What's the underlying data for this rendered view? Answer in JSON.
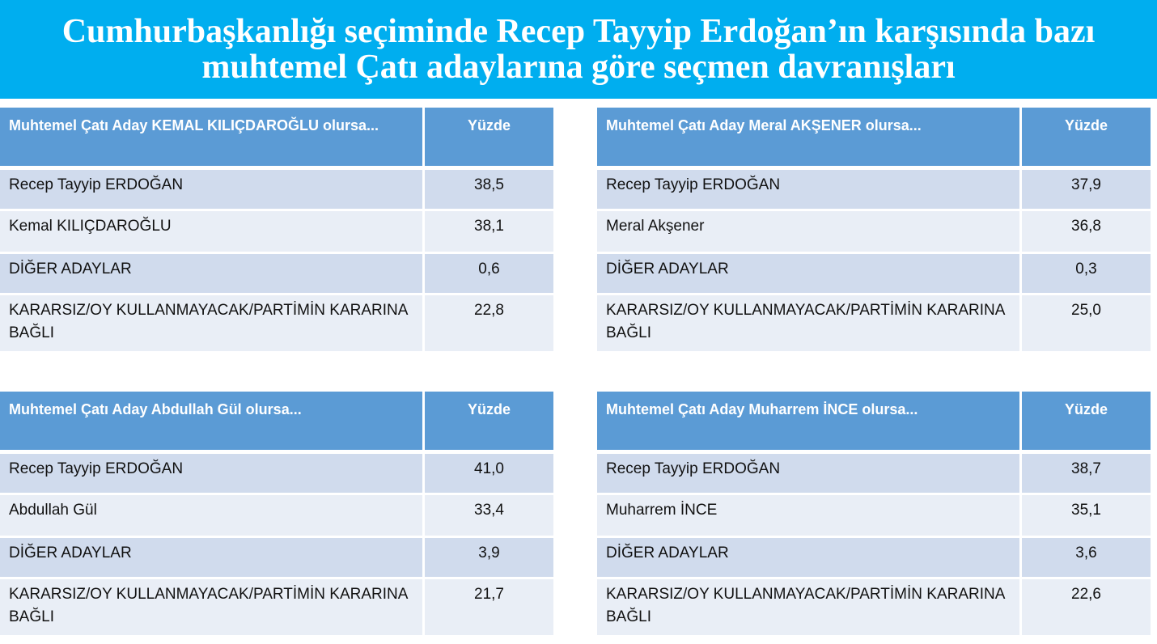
{
  "title": {
    "line1": "Cumhurbaşkanlığı  seçiminde Recep Tayyip Erdoğan’ın karşısında bazı",
    "line2": "muhtemel Çatı adaylarına göre seçmen davranışları"
  },
  "colors": {
    "title_bg": "#00aeef",
    "header_bg": "#5b9bd5",
    "row_odd": "#d0dbed",
    "row_even": "#e9eef6"
  },
  "tables": [
    {
      "header": "Muhtemel Çatı Aday KEMAL KILIÇDAROĞLU olursa...",
      "col": "Yüzde",
      "rows": [
        {
          "label": "Recep Tayyip ERDOĞAN",
          "value": "38,5"
        },
        {
          "label": "Kemal KILIÇDAROĞLU",
          "value": "38,1"
        },
        {
          "label": "DİĞER ADAYLAR",
          "value": "0,6"
        },
        {
          "label": "KARARSIZ/OY KULLANMAYACAK/PARTİMİN KARARINA BAĞLI",
          "value": "22,8"
        }
      ]
    },
    {
      "header": "Muhtemel Çatı Aday Meral AKŞENER olursa...",
      "col": "Yüzde",
      "rows": [
        {
          "label": "Recep Tayyip ERDOĞAN",
          "value": "37,9"
        },
        {
          "label": "Meral Akşener",
          "value": "36,8"
        },
        {
          "label": "DİĞER ADAYLAR",
          "value": "0,3"
        },
        {
          "label": "KARARSIZ/OY KULLANMAYACAK/PARTİMİN KARARINA BAĞLI",
          "value": "25,0"
        }
      ]
    },
    {
      "header": "Muhtemel Çatı Aday Abdullah Gül olursa...",
      "col": "Yüzde",
      "rows": [
        {
          "label": "Recep Tayyip ERDOĞAN",
          "value": "41,0"
        },
        {
          "label": "Abdullah Gül",
          "value": "33,4"
        },
        {
          "label": "DİĞER ADAYLAR",
          "value": "3,9"
        },
        {
          "label": "KARARSIZ/OY KULLANMAYACAK/PARTİMİN KARARINA BAĞLI",
          "value": "21,7"
        }
      ]
    },
    {
      "header": "Muhtemel Çatı Aday Muharrem İNCE olursa...",
      "col": "Yüzde",
      "rows": [
        {
          "label": "Recep Tayyip ERDOĞAN",
          "value": "38,7"
        },
        {
          "label": "Muharrem İNCE",
          "value": "35,1"
        },
        {
          "label": "DİĞER ADAYLAR",
          "value": "3,6"
        },
        {
          "label": "KARARSIZ/OY KULLANMAYACAK/PARTİMİN KARARINA BAĞLI",
          "value": "22,6"
        }
      ]
    }
  ]
}
